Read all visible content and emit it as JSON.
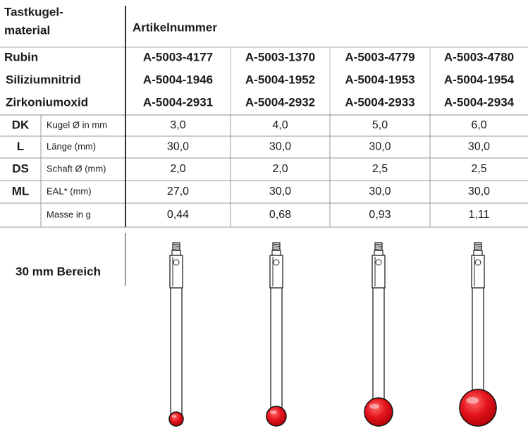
{
  "header": {
    "material_heading": [
      "Tastkugel-",
      "material"
    ],
    "article_heading": "Artikelnummer"
  },
  "materials": [
    {
      "name": "Rubin",
      "articles": [
        "A-5003-4177",
        "A-5003-1370",
        "A-5003-4779",
        "A-5003-4780"
      ]
    },
    {
      "name": "Siliziumnitrid",
      "articles": [
        "A-5004-1946",
        "A-5004-1952",
        "A-5004-1953",
        "A-5004-1954"
      ]
    },
    {
      "name": "Zirkoniumoxid",
      "articles": [
        "A-5004-2931",
        "A-5004-2932",
        "A-5004-2933",
        "A-5004-2934"
      ]
    }
  ],
  "specs": [
    {
      "code": "DK",
      "label": "Kugel Ø in mm",
      "values": [
        "3,0",
        "4,0",
        "5,0",
        "6,0"
      ]
    },
    {
      "code": "L",
      "label": "Länge (mm)",
      "values": [
        "30,0",
        "30,0",
        "30,0",
        "30,0"
      ]
    },
    {
      "code": "DS",
      "label": "Schaft Ø (mm)",
      "values": [
        "2,0",
        "2,0",
        "2,5",
        "2,5"
      ]
    },
    {
      "code": "ML",
      "label": "EAL* (mm)",
      "values": [
        "27,0",
        "30,0",
        "30,0",
        "30,0"
      ]
    },
    {
      "label": "Masse in g",
      "values": [
        "0,44",
        "0,68",
        "0,93",
        "1,11"
      ]
    }
  ],
  "section_label": "30 mm Bereich"
}
